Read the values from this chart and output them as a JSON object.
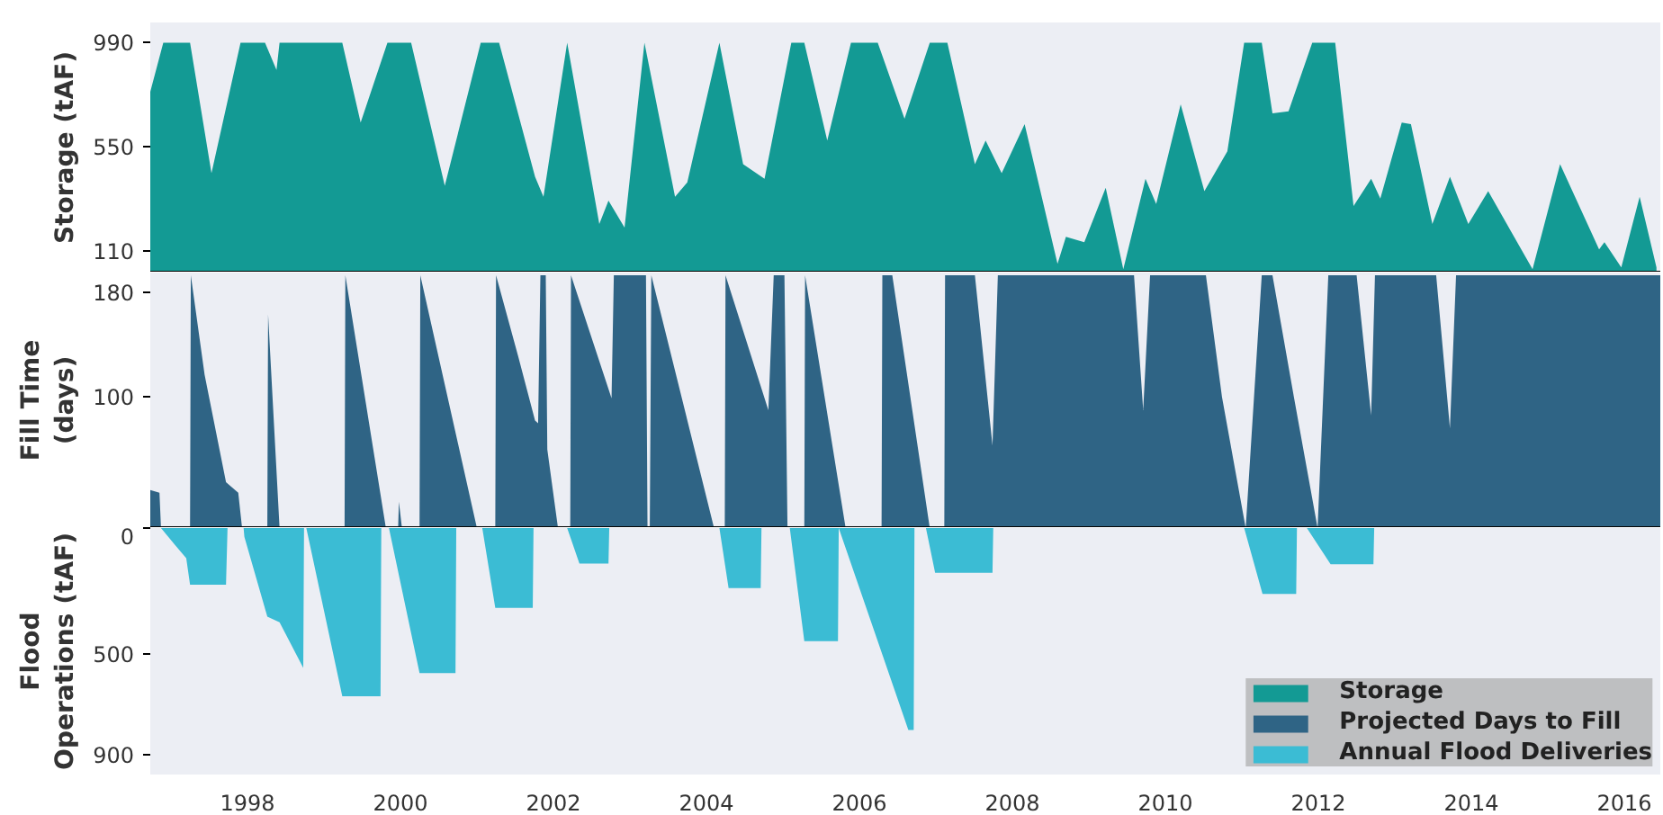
{
  "chart_data": [
    {
      "type": "area",
      "ylabel": "Storage (tAF)",
      "xlim": [
        1996.73,
        2016.47
      ],
      "ylim": [
        20,
        1075
      ],
      "yticks": [
        110,
        550,
        990
      ],
      "tick_labels": "y",
      "grid": false,
      "legend": "bottom right",
      "series": [
        {
          "name": "Storage",
          "color": "#139a94",
          "x": [
            1996.73,
            1996.9,
            1997.25,
            1997.53,
            1997.91,
            1998.23,
            1998.38,
            1998.42,
            1999.24,
            1999.48,
            1999.83,
            2000.14,
            2000.58,
            2001.05,
            2001.29,
            2001.76,
            2001.87,
            2002.18,
            2002.6,
            2002.72,
            2002.93,
            2003.19,
            2003.59,
            2003.75,
            2004.17,
            2004.48,
            2004.76,
            2005.11,
            2005.28,
            2005.58,
            2005.89,
            2006.24,
            2006.59,
            2006.92,
            2007.15,
            2007.51,
            2007.65,
            2007.86,
            2008.16,
            2008.59,
            2008.7,
            2008.94,
            2009.22,
            2009.45,
            2009.74,
            2009.88,
            2010.2,
            2010.51,
            2010.81,
            2011.03,
            2011.26,
            2011.4,
            2011.61,
            2011.92,
            2012.22,
            2012.46,
            2012.69,
            2012.81,
            2013.09,
            2013.21,
            2013.49,
            2013.72,
            2013.96,
            2014.22,
            2014.8,
            2015.16,
            2015.67,
            2015.74,
            2015.96,
            2016.2,
            2016.42
          ],
          "values": [
            783,
            990,
            990,
            439,
            990,
            990,
            875,
            990,
            990,
            653,
            990,
            990,
            386,
            990,
            990,
            424,
            340,
            990,
            225,
            324,
            210,
            990,
            340,
            400,
            990,
            477,
            416,
            990,
            990,
            577,
            990,
            990,
            669,
            990,
            990,
            477,
            577,
            439,
            646,
            57,
            171,
            148,
            378,
            34,
            416,
            309,
            730,
            363,
            531,
            990,
            990,
            692,
            700,
            990,
            990,
            301,
            416,
            332,
            653,
            646,
            225,
            424,
            225,
            363,
            34,
            477,
            118,
            148,
            42,
            340,
            42
          ]
        }
      ]
    },
    {
      "type": "area",
      "ylabel": "Fill Time\n(days)",
      "xlim": [
        1996.73,
        2016.47
      ],
      "ylim": [
        0,
        195
      ],
      "yticks": [
        100,
        180
      ],
      "tick_labels": "y",
      "grid": false,
      "legend": "bottom right",
      "series": [
        {
          "name": "Projected Days to Fill",
          "color": "#2f6485",
          "x": [
            1996.73,
            1996.85,
            1996.87,
            1997.25,
            1997.26,
            1997.44,
            1997.72,
            1997.88,
            1997.93,
            1998.26,
            1998.27,
            1998.42,
            1999.27,
            1999.28,
            1999.81,
            1999.97,
            1999.98,
            2000.02,
            2000.25,
            2000.26,
            2001.0,
            2001.24,
            2001.25,
            2001.54,
            2001.76,
            2001.8,
            2001.83,
            2001.9,
            2001.92,
            2002.06,
            2002.22,
            2002.23,
            2002.76,
            2002.79,
            2003.07,
            2003.21,
            2003.23,
            2003.26,
            2003.28,
            2004.1,
            2004.24,
            2004.25,
            2004.81,
            2004.88,
            2005.02,
            2005.06,
            2005.28,
            2005.29,
            2005.82,
            2006.29,
            2006.3,
            2006.43,
            2006.92,
            2007.11,
            2007.12,
            2007.51,
            2007.74,
            2007.81,
            2009.59,
            2009.71,
            2009.8,
            2010.53,
            2010.74,
            2011.05,
            2011.26,
            2011.4,
            2011.68,
            2011.99,
            2012.13,
            2012.5,
            2012.69,
            2012.74,
            2013.54,
            2013.72,
            2013.8,
            2016.47
          ],
          "values": [
            29,
            27,
            0,
            0,
            193,
            117,
            35,
            27,
            0,
            0,
            163,
            0,
            0,
            193,
            0,
            0,
            20,
            0,
            0,
            193,
            0,
            0,
            193,
            131,
            82,
            80,
            193,
            193,
            60,
            0,
            0,
            193,
            99,
            193,
            193,
            193,
            0,
            0,
            193,
            0,
            0,
            193,
            90,
            193,
            193,
            0,
            0,
            193,
            0,
            0,
            193,
            193,
            0,
            0,
            193,
            193,
            63,
            193,
            193,
            90,
            193,
            193,
            100,
            0,
            193,
            193,
            100,
            0,
            193,
            193,
            86,
            193,
            193,
            76,
            193,
            193
          ]
        }
      ]
    },
    {
      "type": "area",
      "ylabel": "Flood\nOperations (tAF)",
      "xlim": [
        1996.73,
        2016.47
      ],
      "ylim": [
        980,
        0
      ],
      "yticks": [
        0,
        500,
        900
      ],
      "xticks": [
        1998,
        2000,
        2002,
        2004,
        2006,
        2008,
        2010,
        2012,
        2014,
        2016
      ],
      "grid": false,
      "legend": "bottom right",
      "series": [
        {
          "name": "Annual Flood Deliveries",
          "color": "#3bbcd4",
          "x": [
            1996.73,
            1996.87,
            1997.06,
            1997.2,
            1997.25,
            1997.72,
            1997.74,
            1997.95,
            1997.96,
            1998.26,
            1998.42,
            1998.73,
            1998.74,
            1998.77,
            1999.24,
            1999.74,
            1999.75,
            1999.85,
            2000.25,
            2000.72,
            2000.73,
            2001.07,
            2001.24,
            2001.73,
            2001.74,
            2002.18,
            2002.34,
            2002.72,
            2002.73,
            2004.17,
            2004.29,
            2004.71,
            2004.72,
            2005.09,
            2005.28,
            2005.72,
            2005.73,
            2006.64,
            2006.71,
            2006.72,
            2006.87,
            2006.99,
            2007.74,
            2007.75,
            2011.03,
            2011.27,
            2011.71,
            2011.72,
            2011.85,
            2012.16,
            2012.72,
            2012.73,
            2016.47
          ],
          "values": [
            0,
            0,
            70,
            120,
            225,
            225,
            0,
            0,
            35,
            352,
            375,
            556,
            0,
            0,
            669,
            669,
            0,
            0,
            577,
            577,
            0,
            0,
            317,
            317,
            0,
            0,
            141,
            141,
            0,
            0,
            239,
            239,
            0,
            0,
            450,
            450,
            0,
            803,
            803,
            0,
            0,
            178,
            178,
            0,
            0,
            262,
            262,
            0,
            0,
            144,
            144,
            0,
            0
          ]
        }
      ]
    }
  ]
}
